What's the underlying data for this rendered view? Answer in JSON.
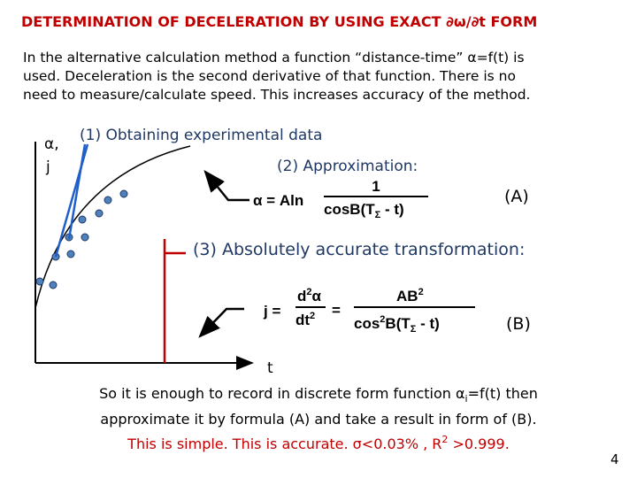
{
  "title": "DETERMINATION OF DECELERATION BY USING EXACT ∂ω/∂t  FORM",
  "intro": [
    "In the alternative calculation method a function “distance-time” α=f(t) is",
    "used. Deceleration is the second derivative of that function. There is no",
    "need to measure/calculate speed. This increases accuracy of the method."
  ],
  "diagram": {
    "y_axis_label": [
      "α,",
      "j"
    ],
    "x_axis_label": "t",
    "step1": "(1) Obtaining experimental data",
    "step2": "(2) Approximation:",
    "formula_a": {
      "lhs": "α = Aln",
      "numerator": "1",
      "denominator": [
        "cosB(T",
        "Σ",
        " - t)"
      ],
      "tag": "(A)"
    },
    "step3": "(3) Absolutely accurate transformation:",
    "formula_b": {
      "lhs": "j =",
      "d_num": [
        "d",
        "2",
        "α"
      ],
      "d_den": [
        "dt",
        "2"
      ],
      "eq": "=",
      "numerator": [
        "AB",
        "2"
      ],
      "denominator": [
        "cos",
        "2",
        "B(T",
        "Σ",
        " - t)"
      ],
      "tag": "(B)"
    }
  },
  "conclusion": {
    "line1": [
      "So it is enough to record in discrete form function α",
      "i",
      "=f(t)  then"
    ],
    "line2": "approximate it by formula (A) and take a result in form of (B).",
    "line3": [
      "This is simple. This is accurate. σ<0.03% , R",
      "2",
      " >0.999."
    ]
  },
  "page_number": "4"
}
